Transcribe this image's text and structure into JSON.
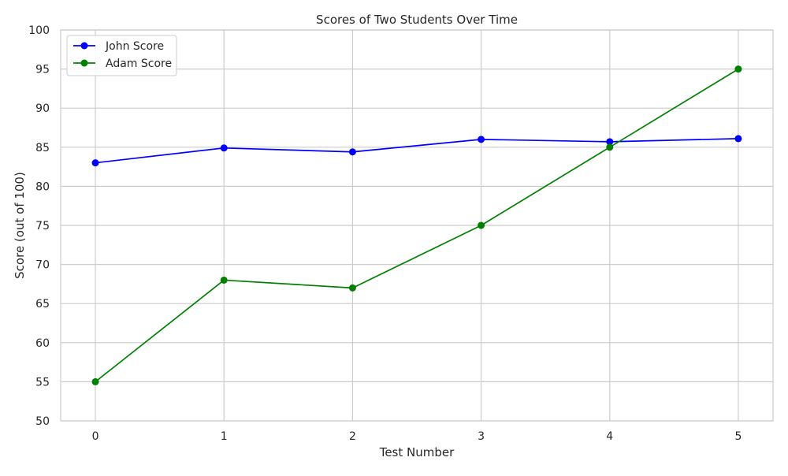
{
  "chart_data": {
    "type": "line",
    "title": "Scores of Two Students Over Time",
    "xlabel": "Test Number",
    "ylabel": "Score (out of 100)",
    "x": [
      0,
      1,
      2,
      3,
      4,
      5
    ],
    "xlim": [
      -0.27,
      5.27
    ],
    "ylim": [
      50,
      100
    ],
    "xticks": [
      0,
      1,
      2,
      3,
      4,
      5
    ],
    "yticks": [
      50,
      55,
      60,
      65,
      70,
      75,
      80,
      85,
      90,
      95,
      100
    ],
    "grid": true,
    "legend_position": "top-left",
    "series": [
      {
        "name": "John Score",
        "color": "#0000ff",
        "marker": "circle",
        "values": [
          83.0,
          84.9,
          84.4,
          86.0,
          85.7,
          86.1
        ]
      },
      {
        "name": "Adam Score",
        "color": "#008000",
        "marker": "circle",
        "values": [
          55,
          68,
          67,
          75,
          85,
          95
        ]
      }
    ]
  }
}
